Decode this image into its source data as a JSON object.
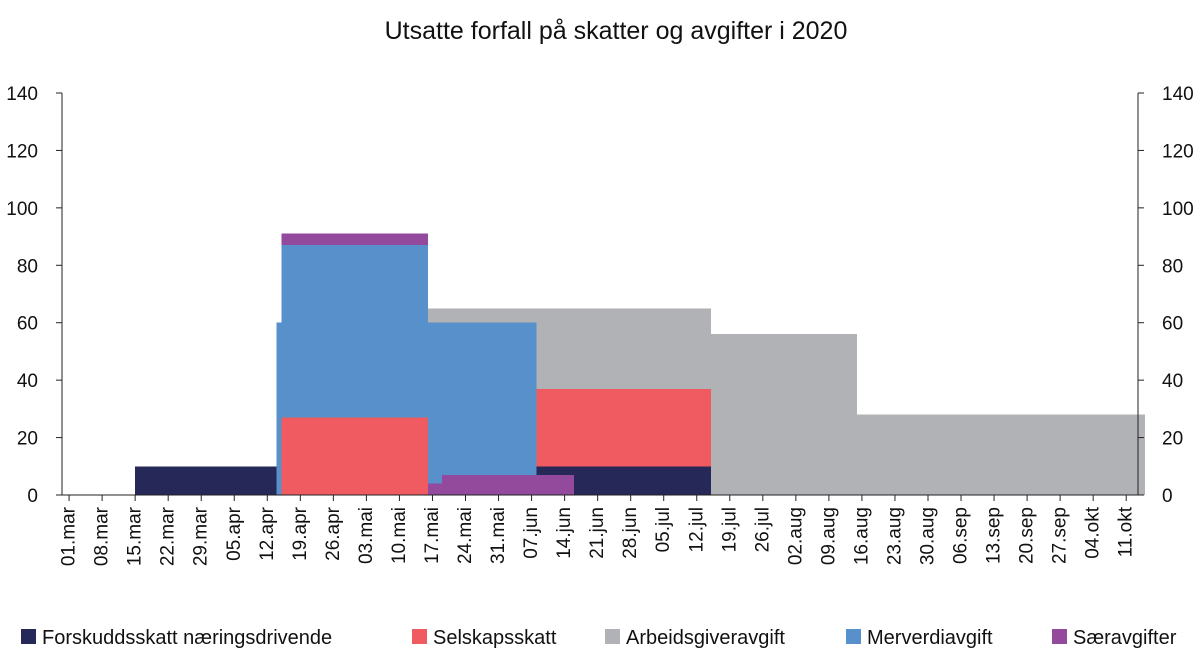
{
  "chart_data": {
    "type": "area",
    "title": "Utsatte forfall på skatter og avgifter i 2020",
    "xlabel": "",
    "ylabel": "",
    "ylim": [
      0,
      140
    ],
    "yticks": [
      0,
      20,
      40,
      60,
      80,
      100,
      120,
      140
    ],
    "y_axis_sides": "left and right",
    "grid": false,
    "legend_position": "bottom",
    "x_tick_labels": [
      "01.mar",
      "08.mar",
      "15.mar",
      "22.mar",
      "29.mar",
      "05.apr",
      "12.apr",
      "19.apr",
      "26.apr",
      "03.mai",
      "10.mai",
      "17.mai",
      "24.mai",
      "31.mai",
      "07.jun",
      "14.jun",
      "21.jun",
      "28.jun",
      "05.jul",
      "12.jul",
      "19.jul",
      "26.jul",
      "02.aug",
      "09.aug",
      "16.aug",
      "23.aug",
      "30.aug",
      "06.sep",
      "13.sep",
      "20.sep",
      "27.sep",
      "04.okt",
      "11.okt"
    ],
    "series": [
      {
        "name": "Forskuddsskatt næringsdrivende",
        "color": "#262858",
        "segments": [
          {
            "from": "15.mar",
            "to": "01.mai",
            "value": 10
          },
          {
            "from": "16.mai",
            "to": "15.jul",
            "value": 10
          }
        ]
      },
      {
        "name": "Selskapsskatt",
        "color": "#ef5b61",
        "segments": [
          {
            "from": "15.apr",
            "to": "01.mai",
            "value": 27
          },
          {
            "from": "01.mai",
            "to": "16.mai",
            "value": 27
          },
          {
            "from": "16.mai",
            "to": "15.jul",
            "value": 27
          },
          {
            "from": "15.jul",
            "to": "01.sep",
            "value": 27
          }
        ]
      },
      {
        "name": "Arbeidsgiveravgift",
        "color": "#b1b2b5",
        "segments": [
          {
            "from": "16.mai",
            "to": "15.jul",
            "value": 28
          },
          {
            "from": "15.jul",
            "to": "15.aug",
            "value": 56
          },
          {
            "from": "15.aug",
            "to": "01.sep",
            "value": 28
          },
          {
            "from": "01.sep",
            "to": "15.okt",
            "value": 28
          }
        ]
      },
      {
        "name": "Merverdiavgift",
        "color": "#5890cc",
        "segments": [
          {
            "from": "14.apr",
            "to": "15.apr",
            "value": 60
          },
          {
            "from": "15.apr",
            "to": "01.mai",
            "value": 60
          },
          {
            "from": "01.mai",
            "to": "16.mai",
            "value": 60
          },
          {
            "from": "16.mai",
            "to": "08.jun",
            "value": 60
          }
        ]
      },
      {
        "name": "Særavgifter",
        "color": "#944a9c",
        "segments": [
          {
            "from": "15.apr",
            "to": "01.mai",
            "value": 4
          },
          {
            "from": "01.mai",
            "to": "16.mai",
            "value": 4
          },
          {
            "from": "16.mai",
            "to": "19.mai",
            "value": 4
          },
          {
            "from": "19.mai",
            "to": "08.jun",
            "value": 7
          },
          {
            "from": "08.jun",
            "to": "16.jun",
            "value": 7
          }
        ]
      }
    ]
  }
}
